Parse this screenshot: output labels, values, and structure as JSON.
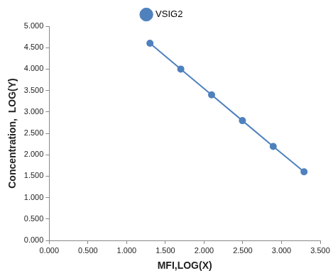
{
  "chart_data": {
    "type": "line",
    "x_label": "MFI,LOG(X)",
    "y_label": "Concentration,  LOG(Y)",
    "series": [
      {
        "name": "VSIG2",
        "color": "#4f81bd",
        "marker": "circle",
        "line_style": "solid",
        "x": [
          1.301,
          1.699,
          2.097,
          2.495,
          2.893,
          3.291
        ],
        "values": [
          4.602,
          4.0,
          3.398,
          2.796,
          2.194,
          1.602
        ]
      }
    ],
    "xlim": [
      0,
      3.5
    ],
    "xticks": [
      {
        "value": 0,
        "label": "0.000"
      },
      {
        "value": 0.5,
        "label": "0.500"
      },
      {
        "value": 1,
        "label": "1.000"
      },
      {
        "value": 1.5,
        "label": "1.500"
      },
      {
        "value": 2,
        "label": "2.000"
      },
      {
        "value": 2.5,
        "label": "2.500"
      },
      {
        "value": 3,
        "label": "3.000"
      },
      {
        "value": 3.5,
        "label": "3.500"
      }
    ],
    "ylim": [
      0,
      5
    ],
    "yticks": [
      {
        "value": 0,
        "label": "0.000"
      },
      {
        "value": 0.5,
        "label": "0.500"
      },
      {
        "value": 1,
        "label": "1.000"
      },
      {
        "value": 1.5,
        "label": "1.500"
      },
      {
        "value": 2,
        "label": "2.000"
      },
      {
        "value": 2.5,
        "label": "2.500"
      },
      {
        "value": 3,
        "label": "3.000"
      },
      {
        "value": 3.5,
        "label": "3.500"
      },
      {
        "value": 4,
        "label": "4.000"
      },
      {
        "value": 4.5,
        "label": "4.500"
      },
      {
        "value": 5,
        "label": "5.000"
      }
    ],
    "grid": false,
    "legend": "top"
  }
}
